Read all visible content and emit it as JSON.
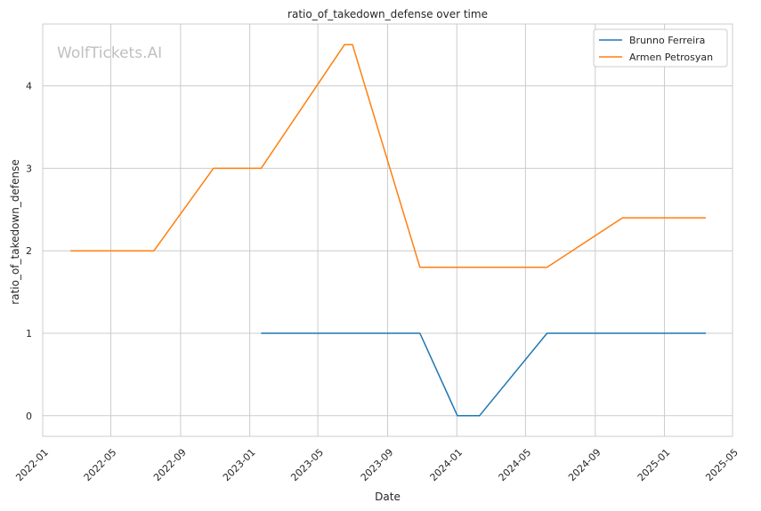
{
  "chart_data": {
    "type": "line",
    "title": "ratio_of_takedown_defense over time",
    "xlabel": "Date",
    "ylabel": "ratio_of_takedown_defense",
    "watermark": "WolfTickets.AI",
    "xlim": [
      "2022-01-01",
      "2025-05-01"
    ],
    "ylim": [
      -0.25,
      4.75
    ],
    "x_ticks": [
      "2022-01",
      "2022-05",
      "2022-09",
      "2023-01",
      "2023-05",
      "2023-09",
      "2024-01",
      "2024-05",
      "2024-09",
      "2025-01",
      "2025-05"
    ],
    "y_ticks": [
      0,
      1,
      2,
      3,
      4
    ],
    "grid": true,
    "legend_position": "top-right",
    "series": [
      {
        "name": "Brunno Ferreira",
        "color": "#1f77b4",
        "points": [
          [
            "2023-01-21",
            1.0
          ],
          [
            "2023-10-28",
            1.0
          ],
          [
            "2024-01-02",
            0.0
          ],
          [
            "2024-02-10",
            0.0
          ],
          [
            "2024-06-08",
            1.0
          ],
          [
            "2025-03-15",
            1.0
          ]
        ]
      },
      {
        "name": "Armen Petrosyan",
        "color": "#ff7f0e",
        "points": [
          [
            "2022-02-19",
            2.0
          ],
          [
            "2022-07-16",
            2.0
          ],
          [
            "2022-10-29",
            3.0
          ],
          [
            "2023-01-21",
            3.0
          ],
          [
            "2023-06-17",
            4.5
          ],
          [
            "2023-07-01",
            4.5
          ],
          [
            "2023-10-28",
            1.8
          ],
          [
            "2024-06-08",
            1.8
          ],
          [
            "2024-10-19",
            2.4
          ],
          [
            "2025-03-15",
            2.4
          ]
        ]
      }
    ]
  }
}
